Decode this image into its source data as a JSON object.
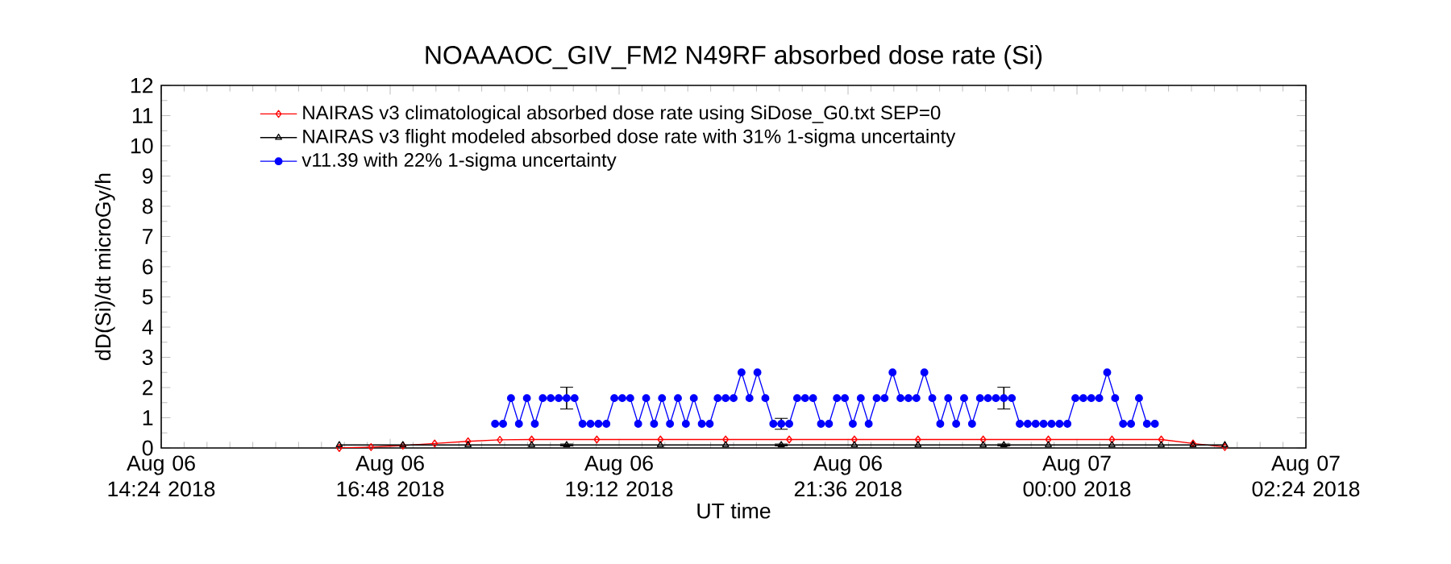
{
  "chart_data": {
    "type": "line",
    "title": "NOAAAOC_GIV_FM2   N49RF  absorbed dose rate (Si)",
    "xlabel": "UT time",
    "ylabel": "dD(Si)/dt microGy/h",
    "xlim": [
      "2018-08-06T14:24",
      "2018-08-07T02:24"
    ],
    "ylim": [
      0,
      12
    ],
    "xticks": [
      {
        "value": "2018-08-06T14:24",
        "label": "Aug 06 14:24 2018"
      },
      {
        "value": "2018-08-06T16:48",
        "label": "Aug 06 16:48 2018"
      },
      {
        "value": "2018-08-06T19:12",
        "label": "Aug 06 19:12 2018"
      },
      {
        "value": "2018-08-06T21:36",
        "label": "Aug 06 21:36 2018"
      },
      {
        "value": "2018-08-07T00:00",
        "label": "Aug 07 00:00 2018"
      },
      {
        "value": "2018-08-07T02:24",
        "label": "Aug 07 02:24 2018"
      }
    ],
    "yticks": [
      0,
      1,
      2,
      3,
      4,
      5,
      6,
      7,
      8,
      9,
      10,
      11,
      12
    ],
    "legend": "top",
    "line_style": "solid",
    "series": [
      {
        "name": "NAIRAS v3 climatological absorbed dose rate using SiDose_G0.txt SEP=0",
        "color": "#ff0000",
        "marker": "diamond",
        "x": [
          "2018-08-06T16:16",
          "2018-08-06T16:36",
          "2018-08-06T16:56",
          "2018-08-06T17:16",
          "2018-08-06T17:37",
          "2018-08-06T17:57",
          "2018-08-06T18:17",
          "2018-08-06T18:58",
          "2018-08-06T19:38",
          "2018-08-06T20:19",
          "2018-08-06T20:59",
          "2018-08-06T21:40",
          "2018-08-06T22:20",
          "2018-08-06T23:01",
          "2018-08-06T23:42",
          "2018-08-07T00:22",
          "2018-08-07T00:53",
          "2018-08-07T01:13",
          "2018-08-07T01:33"
        ],
        "values": [
          0,
          0.03,
          0.08,
          0.15,
          0.22,
          0.27,
          0.28,
          0.28,
          0.28,
          0.28,
          0.28,
          0.28,
          0.28,
          0.28,
          0.28,
          0.28,
          0.28,
          0.15,
          0.03
        ]
      },
      {
        "name": "NAIRAS v3 flight modeled absorbed dose rate with 31% 1-sigma uncertainty",
        "color": "#000000",
        "marker": "triangle",
        "x": [
          "2018-08-06T16:16",
          "2018-08-06T16:56",
          "2018-08-06T17:37",
          "2018-08-06T18:17",
          "2018-08-06T18:39",
          "2018-08-06T19:38",
          "2018-08-06T20:19",
          "2018-08-06T20:54",
          "2018-08-06T21:40",
          "2018-08-06T22:20",
          "2018-08-06T23:01",
          "2018-08-06T23:14",
          "2018-08-06T23:42",
          "2018-08-07T00:22",
          "2018-08-07T00:53",
          "2018-08-07T01:13",
          "2018-08-07T01:33"
        ],
        "values": [
          0.1,
          0.1,
          0.1,
          0.1,
          0.1,
          0.1,
          0.1,
          0.1,
          0.1,
          0.1,
          0.1,
          0.1,
          0.1,
          0.1,
          0.1,
          0.1,
          0.1
        ],
        "errors": [
          null,
          null,
          null,
          null,
          0.03,
          null,
          null,
          0.03,
          null,
          null,
          null,
          0.03,
          null,
          null,
          null,
          null,
          null
        ]
      },
      {
        "name": "v11.39 with 22% 1-sigma uncertainty",
        "color": "#0000ff",
        "marker": "circle",
        "x": [
          "2018-08-06T17:54",
          "2018-08-06T17:59",
          "2018-08-06T18:04",
          "2018-08-06T18:09",
          "2018-08-06T18:14",
          "2018-08-06T18:19",
          "2018-08-06T18:24",
          "2018-08-06T18:29",
          "2018-08-06T18:34",
          "2018-08-06T18:39",
          "2018-08-06T18:44",
          "2018-08-06T18:49",
          "2018-08-06T18:54",
          "2018-08-06T18:59",
          "2018-08-06T19:04",
          "2018-08-06T19:09",
          "2018-08-06T19:14",
          "2018-08-06T19:19",
          "2018-08-06T19:24",
          "2018-08-06T19:29",
          "2018-08-06T19:34",
          "2018-08-06T19:39",
          "2018-08-06T19:44",
          "2018-08-06T19:49",
          "2018-08-06T19:54",
          "2018-08-06T19:59",
          "2018-08-06T20:04",
          "2018-08-06T20:09",
          "2018-08-06T20:14",
          "2018-08-06T20:19",
          "2018-08-06T20:24",
          "2018-08-06T20:29",
          "2018-08-06T20:34",
          "2018-08-06T20:39",
          "2018-08-06T20:44",
          "2018-08-06T20:49",
          "2018-08-06T20:54",
          "2018-08-06T20:59",
          "2018-08-06T21:04",
          "2018-08-06T21:09",
          "2018-08-06T21:14",
          "2018-08-06T21:19",
          "2018-08-06T21:24",
          "2018-08-06T21:29",
          "2018-08-06T21:34",
          "2018-08-06T21:39",
          "2018-08-06T21:44",
          "2018-08-06T21:49",
          "2018-08-06T21:54",
          "2018-08-06T21:59",
          "2018-08-06T22:04",
          "2018-08-06T22:09",
          "2018-08-06T22:14",
          "2018-08-06T22:19",
          "2018-08-06T22:24",
          "2018-08-06T22:29",
          "2018-08-06T22:34",
          "2018-08-06T22:39",
          "2018-08-06T22:44",
          "2018-08-06T22:49",
          "2018-08-06T22:54",
          "2018-08-06T22:59",
          "2018-08-06T23:04",
          "2018-08-06T23:09",
          "2018-08-06T23:14",
          "2018-08-06T23:19",
          "2018-08-06T23:24",
          "2018-08-06T23:29",
          "2018-08-06T23:34",
          "2018-08-06T23:39",
          "2018-08-06T23:44",
          "2018-08-06T23:49",
          "2018-08-06T23:54",
          "2018-08-06T23:59",
          "2018-08-07T00:04",
          "2018-08-07T00:09",
          "2018-08-07T00:14",
          "2018-08-07T00:19",
          "2018-08-07T00:24",
          "2018-08-07T00:29",
          "2018-08-07T00:34",
          "2018-08-07T00:39",
          "2018-08-07T00:44",
          "2018-08-07T00:49"
        ],
        "values": [
          0.8,
          0.8,
          1.65,
          0.8,
          1.65,
          0.8,
          1.65,
          1.65,
          1.65,
          1.65,
          1.65,
          0.8,
          0.8,
          0.8,
          0.8,
          1.65,
          1.65,
          1.65,
          0.8,
          1.65,
          0.8,
          1.65,
          0.8,
          1.65,
          0.8,
          1.65,
          0.8,
          0.8,
          1.65,
          1.65,
          1.65,
          2.5,
          1.65,
          2.5,
          1.65,
          0.8,
          0.8,
          0.8,
          1.65,
          1.65,
          1.65,
          0.8,
          0.8,
          1.65,
          1.65,
          0.8,
          1.65,
          0.8,
          1.65,
          1.65,
          2.5,
          1.65,
          1.65,
          1.65,
          2.5,
          1.65,
          0.8,
          1.65,
          0.8,
          1.65,
          0.8,
          1.65,
          1.65,
          1.65,
          1.65,
          1.65,
          0.8,
          0.8,
          0.8,
          0.8,
          0.8,
          0.8,
          0.8,
          1.65,
          1.65,
          1.65,
          1.65,
          2.5,
          1.65,
          0.8,
          0.8,
          1.65,
          0.8,
          0.8
        ],
        "errors": [
          null,
          null,
          null,
          null,
          null,
          null,
          null,
          null,
          null,
          0.36,
          null,
          null,
          null,
          null,
          null,
          null,
          null,
          null,
          null,
          null,
          null,
          null,
          null,
          null,
          null,
          null,
          null,
          null,
          null,
          null,
          null,
          null,
          null,
          null,
          null,
          null,
          0.18,
          null,
          null,
          null,
          null,
          null,
          null,
          null,
          null,
          null,
          null,
          null,
          null,
          null,
          null,
          null,
          null,
          null,
          null,
          null,
          null,
          null,
          null,
          null,
          null,
          null,
          null,
          null,
          0.36,
          null,
          null,
          null,
          null,
          null,
          null,
          null,
          null,
          null,
          null,
          null,
          null,
          null,
          null,
          null,
          null,
          null,
          null,
          null
        ]
      }
    ]
  }
}
